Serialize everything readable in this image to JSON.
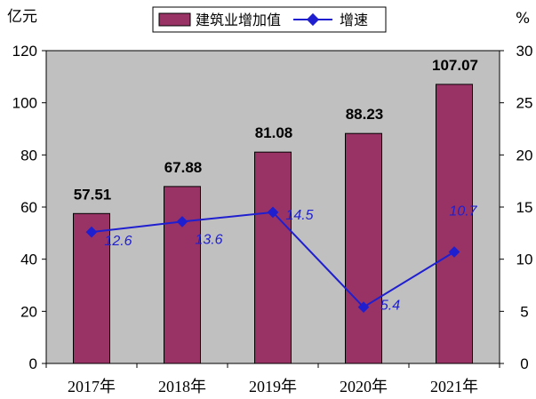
{
  "chart_data": {
    "type": "bar",
    "categories": [
      "2017年",
      "2018年",
      "2019年",
      "2020年",
      "2021年"
    ],
    "series": [
      {
        "name": "建筑业增加值",
        "type": "bar",
        "axis": "left",
        "values": [
          57.51,
          67.88,
          81.08,
          88.23,
          107.07
        ],
        "value_labels": [
          "57.51",
          "67.88",
          "81.08",
          "88.23",
          "107.07"
        ]
      },
      {
        "name": "增速",
        "type": "line",
        "axis": "right",
        "values": [
          12.6,
          13.6,
          14.5,
          5.4,
          10.7
        ],
        "value_labels": [
          "12.6",
          "13.6",
          "14.5",
          "5.4",
          "10.7"
        ]
      }
    ],
    "y_left": {
      "unit": "亿元",
      "ylim": [
        0,
        120
      ],
      "ticks": [
        "0",
        "20",
        "40",
        "60",
        "80",
        "100",
        "120"
      ]
    },
    "y_right": {
      "unit": "%",
      "ylim": [
        0,
        30
      ],
      "ticks": [
        "0",
        "5",
        "10",
        "15",
        "20",
        "25",
        "30"
      ]
    },
    "grid": false,
    "legend_position": "top",
    "colors": {
      "bar_fill": "#993366",
      "bar_stroke": "#000000",
      "line": "#1f1fd0",
      "plot_background": "#c0c0c0",
      "line_label": "#1f1fd0"
    }
  }
}
